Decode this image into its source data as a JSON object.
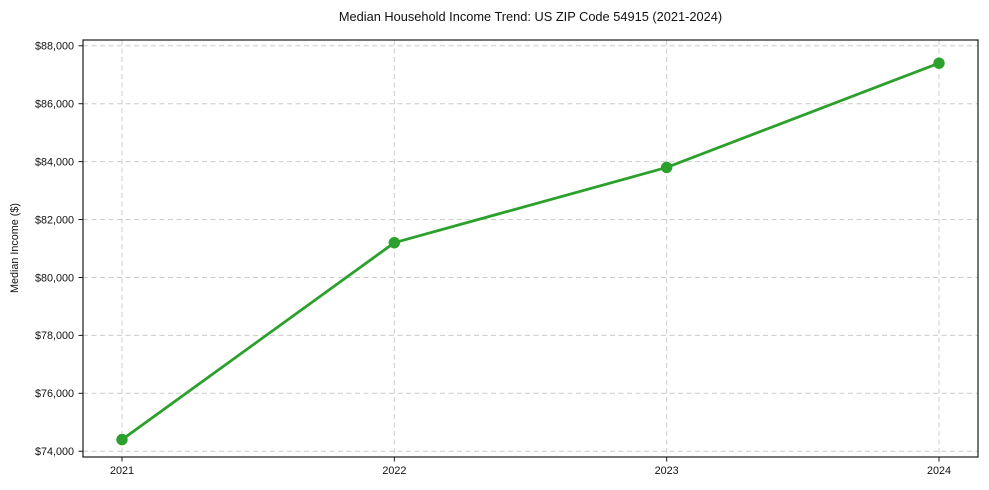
{
  "chart_data": {
    "type": "line",
    "title": "Median Household Income Trend: US ZIP Code 54915 (2021-2024)",
    "xlabel": "",
    "ylabel": "Median Income ($)",
    "categories": [
      "2021",
      "2022",
      "2023",
      "2024"
    ],
    "values": [
      74400,
      81200,
      83800,
      87400
    ],
    "ylim": [
      73800,
      88200
    ],
    "yticks": [
      74000,
      76000,
      78000,
      80000,
      82000,
      84000,
      86000,
      88000
    ],
    "ytick_labels": [
      "$74,000",
      "$76,000",
      "$78,000",
      "$80,000",
      "$82,000",
      "$84,000",
      "$86,000",
      "$88,000"
    ],
    "grid": true,
    "grid_style": "dashed",
    "legend_position": "none",
    "line_color": "#2ca02c",
    "marker": "circle"
  },
  "style": {
    "background": "#ffffff",
    "grid_color": "#cccccc",
    "axis_color": "#1a1a1a",
    "text_color": "#111111"
  }
}
